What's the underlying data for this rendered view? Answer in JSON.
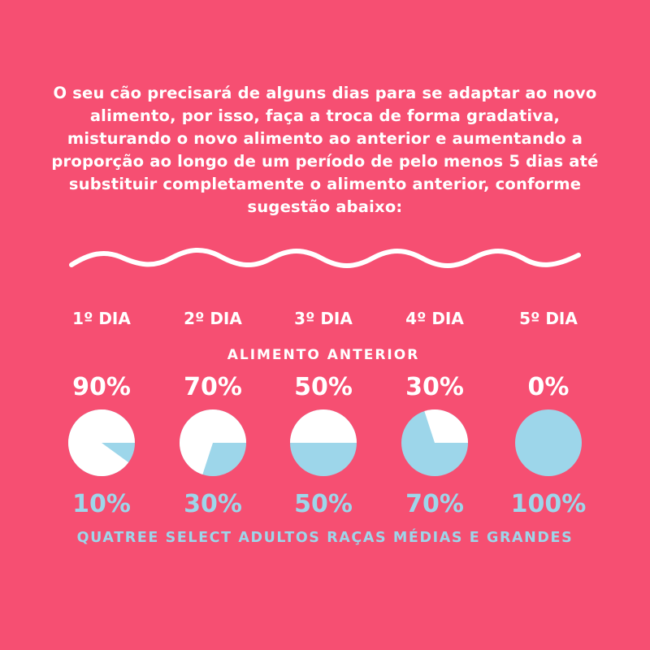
{
  "intro_text": "O seu cão precisará de alguns dias para se adaptar ao novo alimento, por isso, faça a troca de forma gradativa, misturando o novo alimento ao anterior e aumentando a proporção ao longo de um período de pelo menos 5 dias até substituir completamente o alimento anterior, conforme sugestão abaixo:",
  "footer_text": "QUATREE SELECT ADULTOS RAÇAS MÉDIAS E GRANDES",
  "colors": {
    "background": "#f64f72",
    "previous_food": "#ffffff",
    "new_food": "#9dd6ea"
  },
  "chart_data": {
    "type": "pie",
    "categories": [
      "1º DIA",
      "2º DIA",
      "3º DIA",
      "4º DIA",
      "5º DIA"
    ],
    "title": "ALIMENTO ANTERIOR",
    "series": [
      {
        "name": "ALIMENTO ANTERIOR",
        "values": [
          90,
          70,
          50,
          30,
          0
        ],
        "labels": [
          "90%",
          "70%",
          "50%",
          "30%",
          "0%"
        ]
      },
      {
        "values": [
          10,
          30,
          50,
          70,
          100
        ],
        "labels": [
          "10%",
          "30%",
          "50%",
          "70%",
          "100%"
        ]
      }
    ]
  }
}
